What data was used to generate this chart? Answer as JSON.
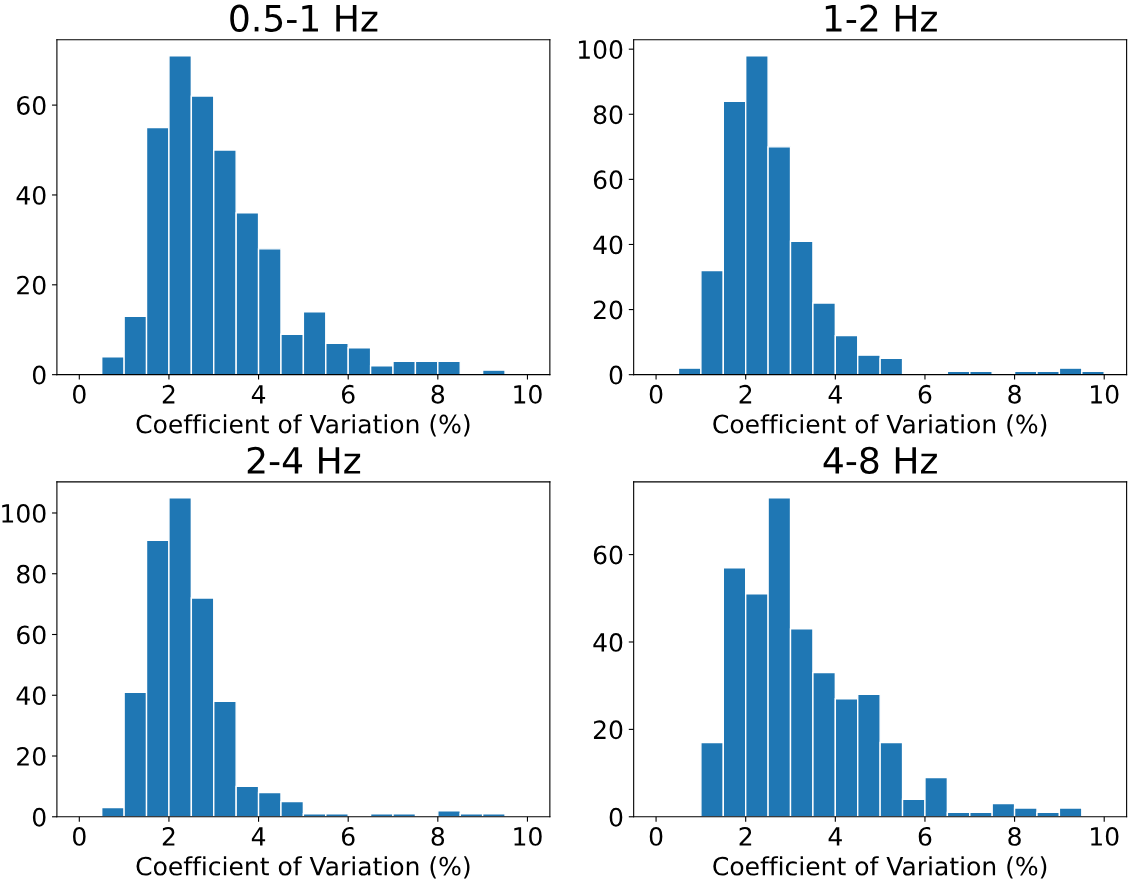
{
  "chart_data": [
    {
      "type": "histogram",
      "title": "0.5-1 Hz",
      "xlabel": "Coefficient of Variation (%)",
      "color": "#1f77b4",
      "bins": [
        0,
        0.5,
        1,
        1.5,
        2,
        2.5,
        3,
        3.5,
        4,
        4.5,
        5,
        5.5,
        6,
        6.5,
        7,
        7.5,
        8,
        8.5,
        9,
        9.5,
        10
      ],
      "values": [
        0,
        4,
        13,
        55,
        71,
        62,
        50,
        36,
        28,
        9,
        14,
        7,
        6,
        2,
        3,
        3,
        3,
        0,
        1,
        0
      ],
      "xlim": [
        -0.5,
        10.5
      ],
      "xticks": [
        0,
        2,
        4,
        6,
        8,
        10
      ],
      "ylim": [
        0,
        74.55
      ],
      "yticks": [
        0,
        20,
        40,
        60
      ],
      "grid": false
    },
    {
      "type": "histogram",
      "title": "1-2 Hz",
      "xlabel": "Coefficient of Variation (%)",
      "color": "#1f77b4",
      "bins": [
        0,
        0.5,
        1,
        1.5,
        2,
        2.5,
        3,
        3.5,
        4,
        4.5,
        5,
        5.5,
        6,
        6.5,
        7,
        7.5,
        8,
        8.5,
        9,
        9.5,
        10
      ],
      "values": [
        0,
        2,
        32,
        84,
        98,
        70,
        41,
        22,
        12,
        6,
        5,
        0,
        0,
        1,
        1,
        0,
        1,
        1,
        2,
        1
      ],
      "xlim": [
        -0.5,
        10.5
      ],
      "xticks": [
        0,
        2,
        4,
        6,
        8,
        10
      ],
      "ylim": [
        0,
        102.9
      ],
      "yticks": [
        0,
        20,
        40,
        60,
        80,
        100
      ],
      "grid": false
    },
    {
      "type": "histogram",
      "title": "2-4 Hz",
      "xlabel": "Coefficient of Variation (%)",
      "color": "#1f77b4",
      "bins": [
        0,
        0.5,
        1,
        1.5,
        2,
        2.5,
        3,
        3.5,
        4,
        4.5,
        5,
        5.5,
        6,
        6.5,
        7,
        7.5,
        8,
        8.5,
        9,
        9.5,
        10
      ],
      "values": [
        0,
        3,
        41,
        91,
        105,
        72,
        38,
        10,
        8,
        5,
        1,
        1,
        0,
        1,
        1,
        0,
        2,
        1,
        1,
        0
      ],
      "xlim": [
        -0.5,
        10.5
      ],
      "xticks": [
        0,
        2,
        4,
        6,
        8,
        10
      ],
      "ylim": [
        0,
        110.25
      ],
      "yticks": [
        0,
        20,
        40,
        60,
        80,
        100
      ],
      "grid": false
    },
    {
      "type": "histogram",
      "title": "4-8 Hz",
      "xlabel": "Coefficient of Variation (%)",
      "color": "#1f77b4",
      "bins": [
        0,
        0.5,
        1,
        1.5,
        2,
        2.5,
        3,
        3.5,
        4,
        4.5,
        5,
        5.5,
        6,
        6.5,
        7,
        7.5,
        8,
        8.5,
        9,
        9.5,
        10
      ],
      "values": [
        0,
        0,
        17,
        57,
        51,
        73,
        43,
        33,
        27,
        28,
        17,
        4,
        9,
        1,
        1,
        3,
        2,
        1,
        2,
        0
      ],
      "xlim": [
        -0.5,
        10.5
      ],
      "xticks": [
        0,
        2,
        4,
        6,
        8,
        10
      ],
      "ylim": [
        0,
        76.65
      ],
      "yticks": [
        0,
        20,
        40,
        60
      ],
      "grid": false
    }
  ]
}
